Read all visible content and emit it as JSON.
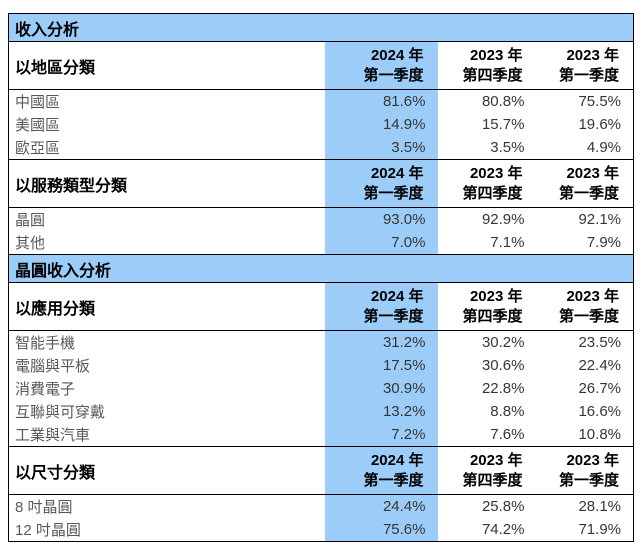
{
  "colors": {
    "highlight_blue": "#9CCDF8",
    "border_black": "#000000",
    "row_label_gray": "#595959",
    "value_dark": "#363636"
  },
  "table": {
    "column_headers": {
      "col1": {
        "year": "2024 年",
        "quarter": "第一季度"
      },
      "col2": {
        "year": "2023 年",
        "quarter": "第四季度"
      },
      "col3": {
        "year": "2023 年",
        "quarter": "第一季度"
      }
    },
    "sections": [
      {
        "title": "收入分析",
        "groups": [
          {
            "label": "以地區分類",
            "rows": [
              {
                "label": "中國區",
                "values": [
                  "81.6%",
                  "80.8%",
                  "75.5%"
                ]
              },
              {
                "label": "美國區",
                "values": [
                  "14.9%",
                  "15.7%",
                  "19.6%"
                ]
              },
              {
                "label": "歐亞區",
                "values": [
                  "3.5%",
                  "3.5%",
                  "4.9%"
                ]
              }
            ]
          },
          {
            "label": "以服務類型分類",
            "rows": [
              {
                "label": "晶圓",
                "values": [
                  "93.0%",
                  "92.9%",
                  "92.1%"
                ]
              },
              {
                "label": "其他",
                "values": [
                  "7.0%",
                  "7.1%",
                  "7.9%"
                ]
              }
            ]
          }
        ]
      },
      {
        "title": "晶圓收入分析",
        "groups": [
          {
            "label": "以應用分類",
            "rows": [
              {
                "label": "智能手機",
                "values": [
                  "31.2%",
                  "30.2%",
                  "23.5%"
                ]
              },
              {
                "label": "電腦與平板",
                "values": [
                  "17.5%",
                  "30.6%",
                  "22.4%"
                ]
              },
              {
                "label": "消費電子",
                "values": [
                  "30.9%",
                  "22.8%",
                  "26.7%"
                ]
              },
              {
                "label": "互聯與可穿戴",
                "values": [
                  "13.2%",
                  "8.8%",
                  "16.6%"
                ]
              },
              {
                "label": "工業與汽車",
                "values": [
                  "7.2%",
                  "7.6%",
                  "10.8%"
                ]
              }
            ]
          },
          {
            "label": "以尺寸分類",
            "rows": [
              {
                "label": "8 吋晶圓",
                "values": [
                  "24.4%",
                  "25.8%",
                  "28.1%"
                ]
              },
              {
                "label": "12 吋晶圓",
                "values": [
                  "75.6%",
                  "74.2%",
                  "71.9%"
                ]
              }
            ]
          }
        ]
      }
    ]
  }
}
